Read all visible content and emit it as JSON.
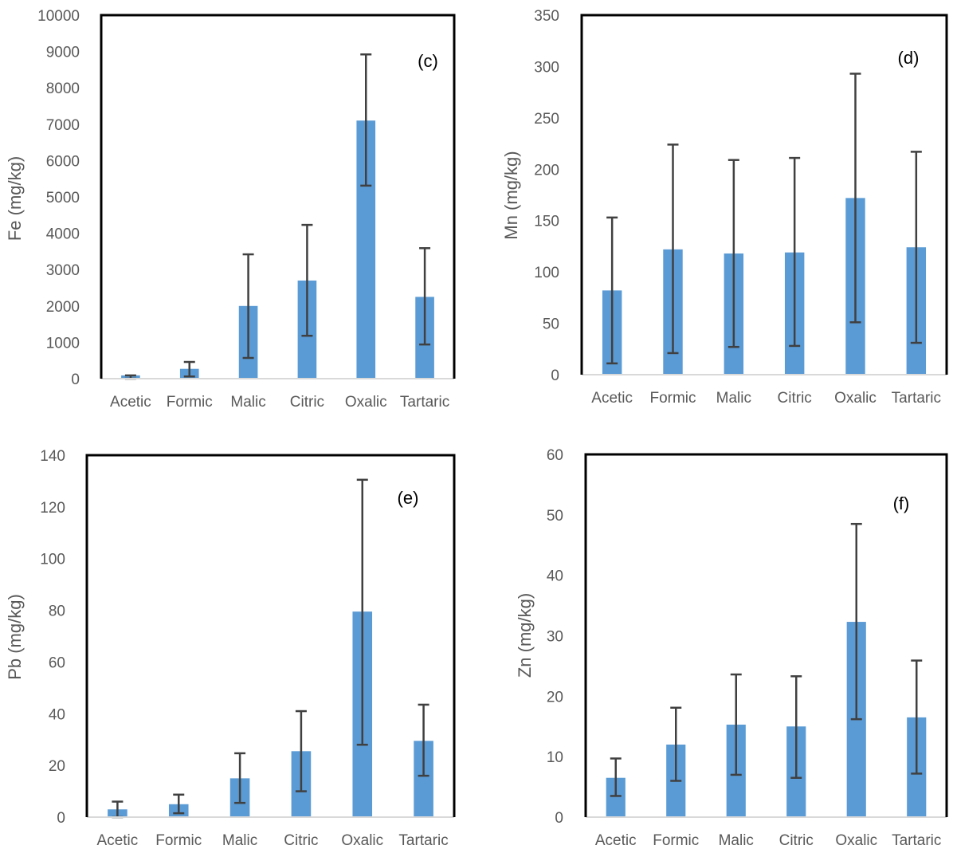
{
  "figure": {
    "colors": {
      "bar": "#5B9BD5",
      "error": "#404040",
      "frame": "#000000",
      "axis": "#D9D9D9",
      "text": "#595959"
    }
  },
  "chart_data": [
    {
      "type": "bar",
      "panel": "(c)",
      "title": "",
      "xlabel": "",
      "ylabel": "Fe (mg/kg)",
      "categories": [
        "Acetic",
        "Formic",
        "Malic",
        "Citric",
        "Oxalic",
        "Tartaric"
      ],
      "values": [
        90,
        270,
        2000,
        2700,
        7100,
        2250
      ],
      "error_low": [
        90,
        210,
        1430,
        1520,
        1790,
        1310
      ],
      "error_high": [
        0,
        190,
        1420,
        1530,
        1820,
        1340
      ],
      "ylim": [
        0,
        10000
      ],
      "yticks": [
        "0",
        "1000",
        "2000",
        "3000",
        "4000",
        "5000",
        "6000",
        "7000",
        "8000",
        "9000",
        "10000"
      ],
      "legend": "none"
    },
    {
      "type": "bar",
      "panel": "(d)",
      "title": "",
      "xlabel": "",
      "ylabel": "Mn (mg/kg)",
      "categories": [
        "Acetic",
        "Formic",
        "Malic",
        "Citric",
        "Oxalic",
        "Tartaric"
      ],
      "values": [
        82,
        122,
        118,
        119,
        172,
        124
      ],
      "error_low": [
        71,
        101,
        91,
        91,
        121,
        93
      ],
      "error_high": [
        71,
        102,
        91,
        92,
        121,
        93
      ],
      "ylim": [
        0,
        350
      ],
      "yticks": [
        "0",
        "50",
        "100",
        "150",
        "200",
        "250",
        "300",
        "350"
      ],
      "legend": "none"
    },
    {
      "type": "bar",
      "panel": "(e)",
      "title": "",
      "xlabel": "",
      "ylabel": "Pb (mg/kg)",
      "categories": [
        "Acetic",
        "Formic",
        "Malic",
        "Citric",
        "Oxalic",
        "Tartaric"
      ],
      "values": [
        3,
        5,
        15,
        25.5,
        79.5,
        29.5
      ],
      "error_low": [
        3,
        3.5,
        9.5,
        15.5,
        51.5,
        13.5
      ],
      "error_high": [
        3,
        3.7,
        9.7,
        15.5,
        51,
        14
      ],
      "ylim": [
        0,
        140
      ],
      "yticks": [
        "0",
        "20",
        "40",
        "60",
        "80",
        "100",
        "120",
        "140"
      ],
      "legend": "none"
    },
    {
      "type": "bar",
      "panel": "(f)",
      "title": "",
      "xlabel": "",
      "ylabel": "Zn (mg/kg)",
      "categories": [
        "Acetic",
        "Formic",
        "Malic",
        "Citric",
        "Oxalic",
        "Tartaric"
      ],
      "values": [
        6.5,
        12,
        15.3,
        15,
        32.3,
        16.5
      ],
      "error_low": [
        3,
        6,
        8.3,
        8.5,
        16.1,
        9.3
      ],
      "error_high": [
        3.2,
        6.1,
        8.3,
        8.3,
        16.2,
        9.4
      ],
      "ylim": [
        0,
        60
      ],
      "yticks": [
        "0",
        "10",
        "20",
        "30",
        "40",
        "50",
        "60"
      ],
      "legend": "none"
    }
  ]
}
